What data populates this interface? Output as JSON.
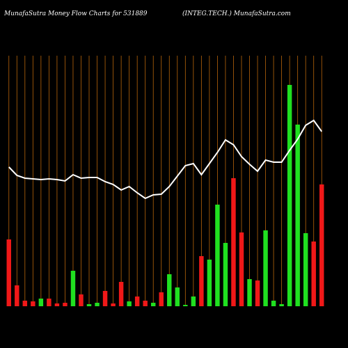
{
  "chart_data": {
    "type": "bar-line",
    "title": "MunafaSutra  Money Flow  Charts for 531889",
    "subtitle": "(INTEG.TECH.) MunafaSutra.com",
    "categories": [
      null,
      null,
      null,
      null,
      null,
      null,
      null,
      null,
      null,
      null,
      null,
      null,
      null,
      null,
      null,
      null,
      null,
      null,
      null,
      null,
      null,
      null,
      null,
      null,
      null,
      null,
      null,
      null,
      null,
      null,
      null,
      null,
      null,
      null,
      null,
      null,
      null,
      null,
      null,
      null
    ],
    "ylim": [
      0,
      360
    ],
    "grid_color": "#b8650a",
    "series": [
      {
        "type": "bar",
        "colors": [
          "#f01818",
          "#f01818",
          "#f01818",
          "#f01818",
          "#20e020",
          "#f01818",
          "#f01818",
          "#f01818",
          "#20e020",
          "#f01818",
          "#20e020",
          "#20e020",
          "#f01818",
          "#f01818",
          "#f01818",
          "#20e020",
          "#f01818",
          "#f01818",
          "#20e020",
          "#f01818",
          "#20e020",
          "#20e020",
          "#20e020",
          "#20e020",
          "#f01818",
          "#20e020",
          "#20e020",
          "#20e020",
          "#f01818",
          "#f01818",
          "#20e020",
          "#f01818",
          "#20e020",
          "#20e020",
          "#20e020",
          "#20e020",
          "#20e020",
          "#20e020",
          "#f01818",
          "#f01818"
        ],
        "values": [
          96,
          30,
          8,
          7,
          11,
          11,
          4,
          5,
          51,
          17,
          3,
          5,
          22,
          4,
          35,
          7,
          14,
          8,
          5,
          20,
          46,
          27,
          2,
          14,
          72,
          67,
          146,
          91,
          184,
          106,
          39,
          37,
          109,
          8,
          3,
          318,
          261,
          105,
          93,
          175
        ]
      },
      {
        "type": "line",
        "color": "#ffffff",
        "values": [
          200,
          188,
          184,
          183,
          182,
          183,
          182,
          180,
          189,
          184,
          185,
          185,
          179,
          175,
          167,
          172,
          163,
          155,
          160,
          161,
          172,
          187,
          202,
          205,
          189,
          205,
          221,
          239,
          232,
          215,
          204,
          194,
          210,
          207,
          207,
          224,
          240,
          260,
          267,
          251
        ]
      }
    ]
  }
}
